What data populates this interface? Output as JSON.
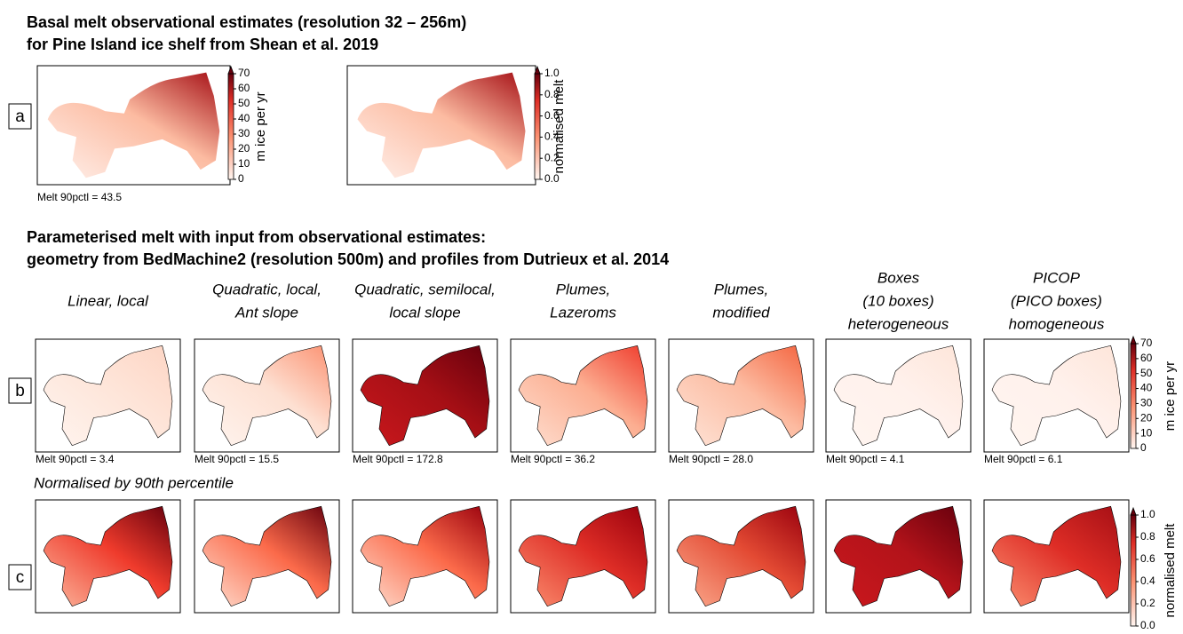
{
  "panel_a": {
    "title_lines": [
      "Basal melt observational estimates (resolution 32 – 256m)",
      "for Pine Island ice shelf from Shean et al. 2019"
    ],
    "label": "a",
    "stat": "Melt 90pctl = 43.5",
    "colorbars": [
      {
        "label": "m ice per yr",
        "ticks": [
          0,
          10,
          20,
          30,
          40,
          50,
          60,
          70
        ]
      },
      {
        "label": "normalised melt",
        "ticks": [
          {
            "value": 0,
            "label": "0.0"
          },
          {
            "value": 0.2,
            "label": "0.2"
          },
          {
            "value": 0.4,
            "label": "0.4"
          },
          {
            "value": 0.6,
            "label": "0.6"
          },
          {
            "value": 0.8,
            "label": "0.8"
          },
          {
            "value": 1,
            "label": "1.0"
          }
        ]
      }
    ]
  },
  "panel_b": {
    "title_lines": [
      "Parameterised melt with input from observational estimates:",
      "geometry from BedMachine2 (resolution 500m) and profiles from Dutrieux et al. 2014"
    ],
    "label": "b",
    "methods": [
      {
        "title_lines": [
          "Linear, local"
        ],
        "stat": "Melt 90pctl = 3.4"
      },
      {
        "title_lines": [
          "Quadratic, local,",
          "Ant slope"
        ],
        "stat": "Melt 90pctl = 15.5"
      },
      {
        "title_lines": [
          "Quadratic, semilocal,",
          "local slope"
        ],
        "stat": "Melt 90pctl = 172.8"
      },
      {
        "title_lines": [
          "Plumes,",
          "Lazeroms"
        ],
        "stat": "Melt 90pctl = 36.2"
      },
      {
        "title_lines": [
          "Plumes,",
          "modified"
        ],
        "stat": "Melt 90pctl = 28.0"
      },
      {
        "title_lines": [
          "Boxes",
          "(10 boxes)",
          "heterogeneous"
        ],
        "stat": "Melt 90pctl = 4.1"
      },
      {
        "title_lines": [
          "PICOP",
          "(PICO boxes)",
          "homogeneous"
        ],
        "stat": "Melt 90pctl = 6.1"
      }
    ],
    "colorbar": {
      "label": "m ice per yr",
      "ticks": [
        0,
        10,
        20,
        30,
        40,
        50,
        60,
        70
      ]
    }
  },
  "panel_c": {
    "title": "Normalised by 90th percentile",
    "label": "c",
    "colorbar": {
      "label": "normalised melt",
      "ticks": [
        {
          "value": 0,
          "label": "0.0"
        },
        {
          "value": 0.2,
          "label": "0.2"
        },
        {
          "value": 0.4,
          "label": "0.4"
        },
        {
          "value": 0.6,
          "label": "0.6"
        },
        {
          "value": 0.8,
          "label": "0.8"
        },
        {
          "value": 1,
          "label": "1.0"
        }
      ]
    }
  }
}
